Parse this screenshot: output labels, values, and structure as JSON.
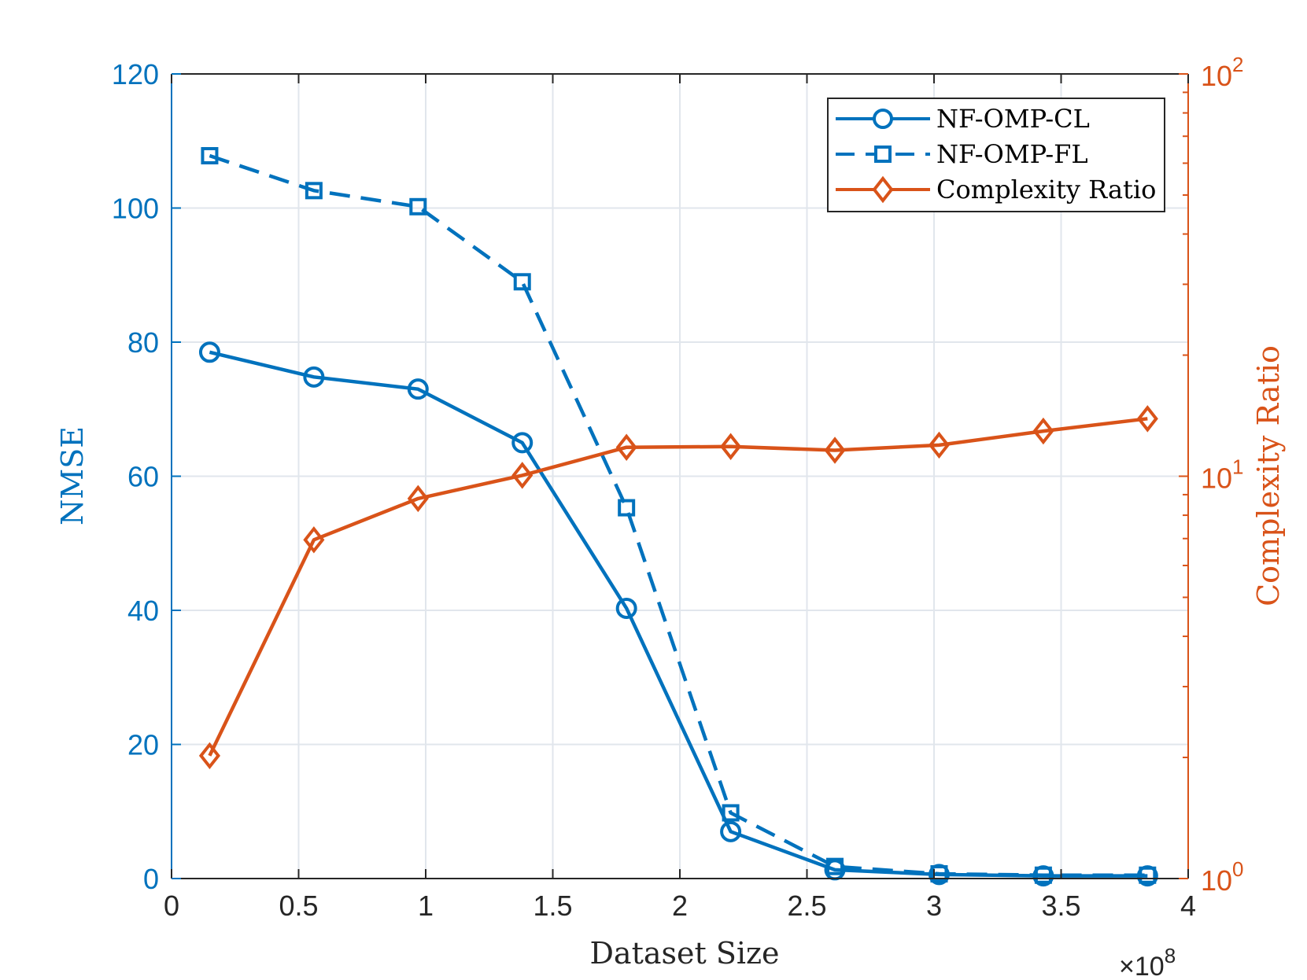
{
  "chart_data": {
    "type": "line",
    "x": [
      0.15,
      0.56,
      0.97,
      1.38,
      1.79,
      2.2,
      2.61,
      3.02,
      3.43,
      3.84
    ],
    "xlabel": "Dataset Size",
    "x_exponent_base": "×10",
    "x_exponent_power": "8",
    "xlim": [
      0,
      4
    ],
    "xticks": [
      0,
      0.5,
      1,
      1.5,
      2,
      2.5,
      3,
      3.5,
      4
    ],
    "xtick_labels": [
      "0",
      "0.5",
      "1",
      "1.5",
      "2",
      "2.5",
      "3",
      "3.5",
      "4"
    ],
    "ylabel_left": "NMSE",
    "ylim_left": [
      0,
      120
    ],
    "yticks_left": [
      0,
      20,
      40,
      60,
      80,
      100,
      120
    ],
    "ytick_labels_left": [
      "0",
      "20",
      "40",
      "60",
      "80",
      "100",
      "120"
    ],
    "ylabel_right": "Complexity Ratio",
    "ylim_right": [
      1,
      100
    ],
    "yscale_right": "log",
    "yticks_right": [
      {
        "base": "10",
        "exp": "0"
      },
      {
        "base": "10",
        "exp": "1"
      },
      {
        "base": "10",
        "exp": "2"
      }
    ],
    "grid": true,
    "legend_position": "top-right",
    "series": [
      {
        "name": "NF-OMP-CL",
        "axis": "left",
        "color": "#0072BD",
        "marker": "circle",
        "linestyle": "solid",
        "values": [
          78.5,
          74.8,
          73,
          65,
          40.3,
          7,
          1.3,
          0.6,
          0.4,
          0.4
        ]
      },
      {
        "name": "NF-OMP-FL",
        "axis": "left",
        "color": "#0072BD",
        "marker": "square",
        "linestyle": "dashed",
        "values": [
          107.8,
          102.6,
          100.2,
          89,
          55.3,
          9.8,
          1.8,
          0.7,
          0.5,
          0.5
        ]
      },
      {
        "name": "Complexity Ratio",
        "axis": "right",
        "color": "#D95319",
        "marker": "diamond",
        "linestyle": "solid",
        "values": [
          2.02,
          6.95,
          8.8,
          10.05,
          11.8,
          11.85,
          11.6,
          11.95,
          12.95,
          13.9
        ]
      }
    ]
  }
}
